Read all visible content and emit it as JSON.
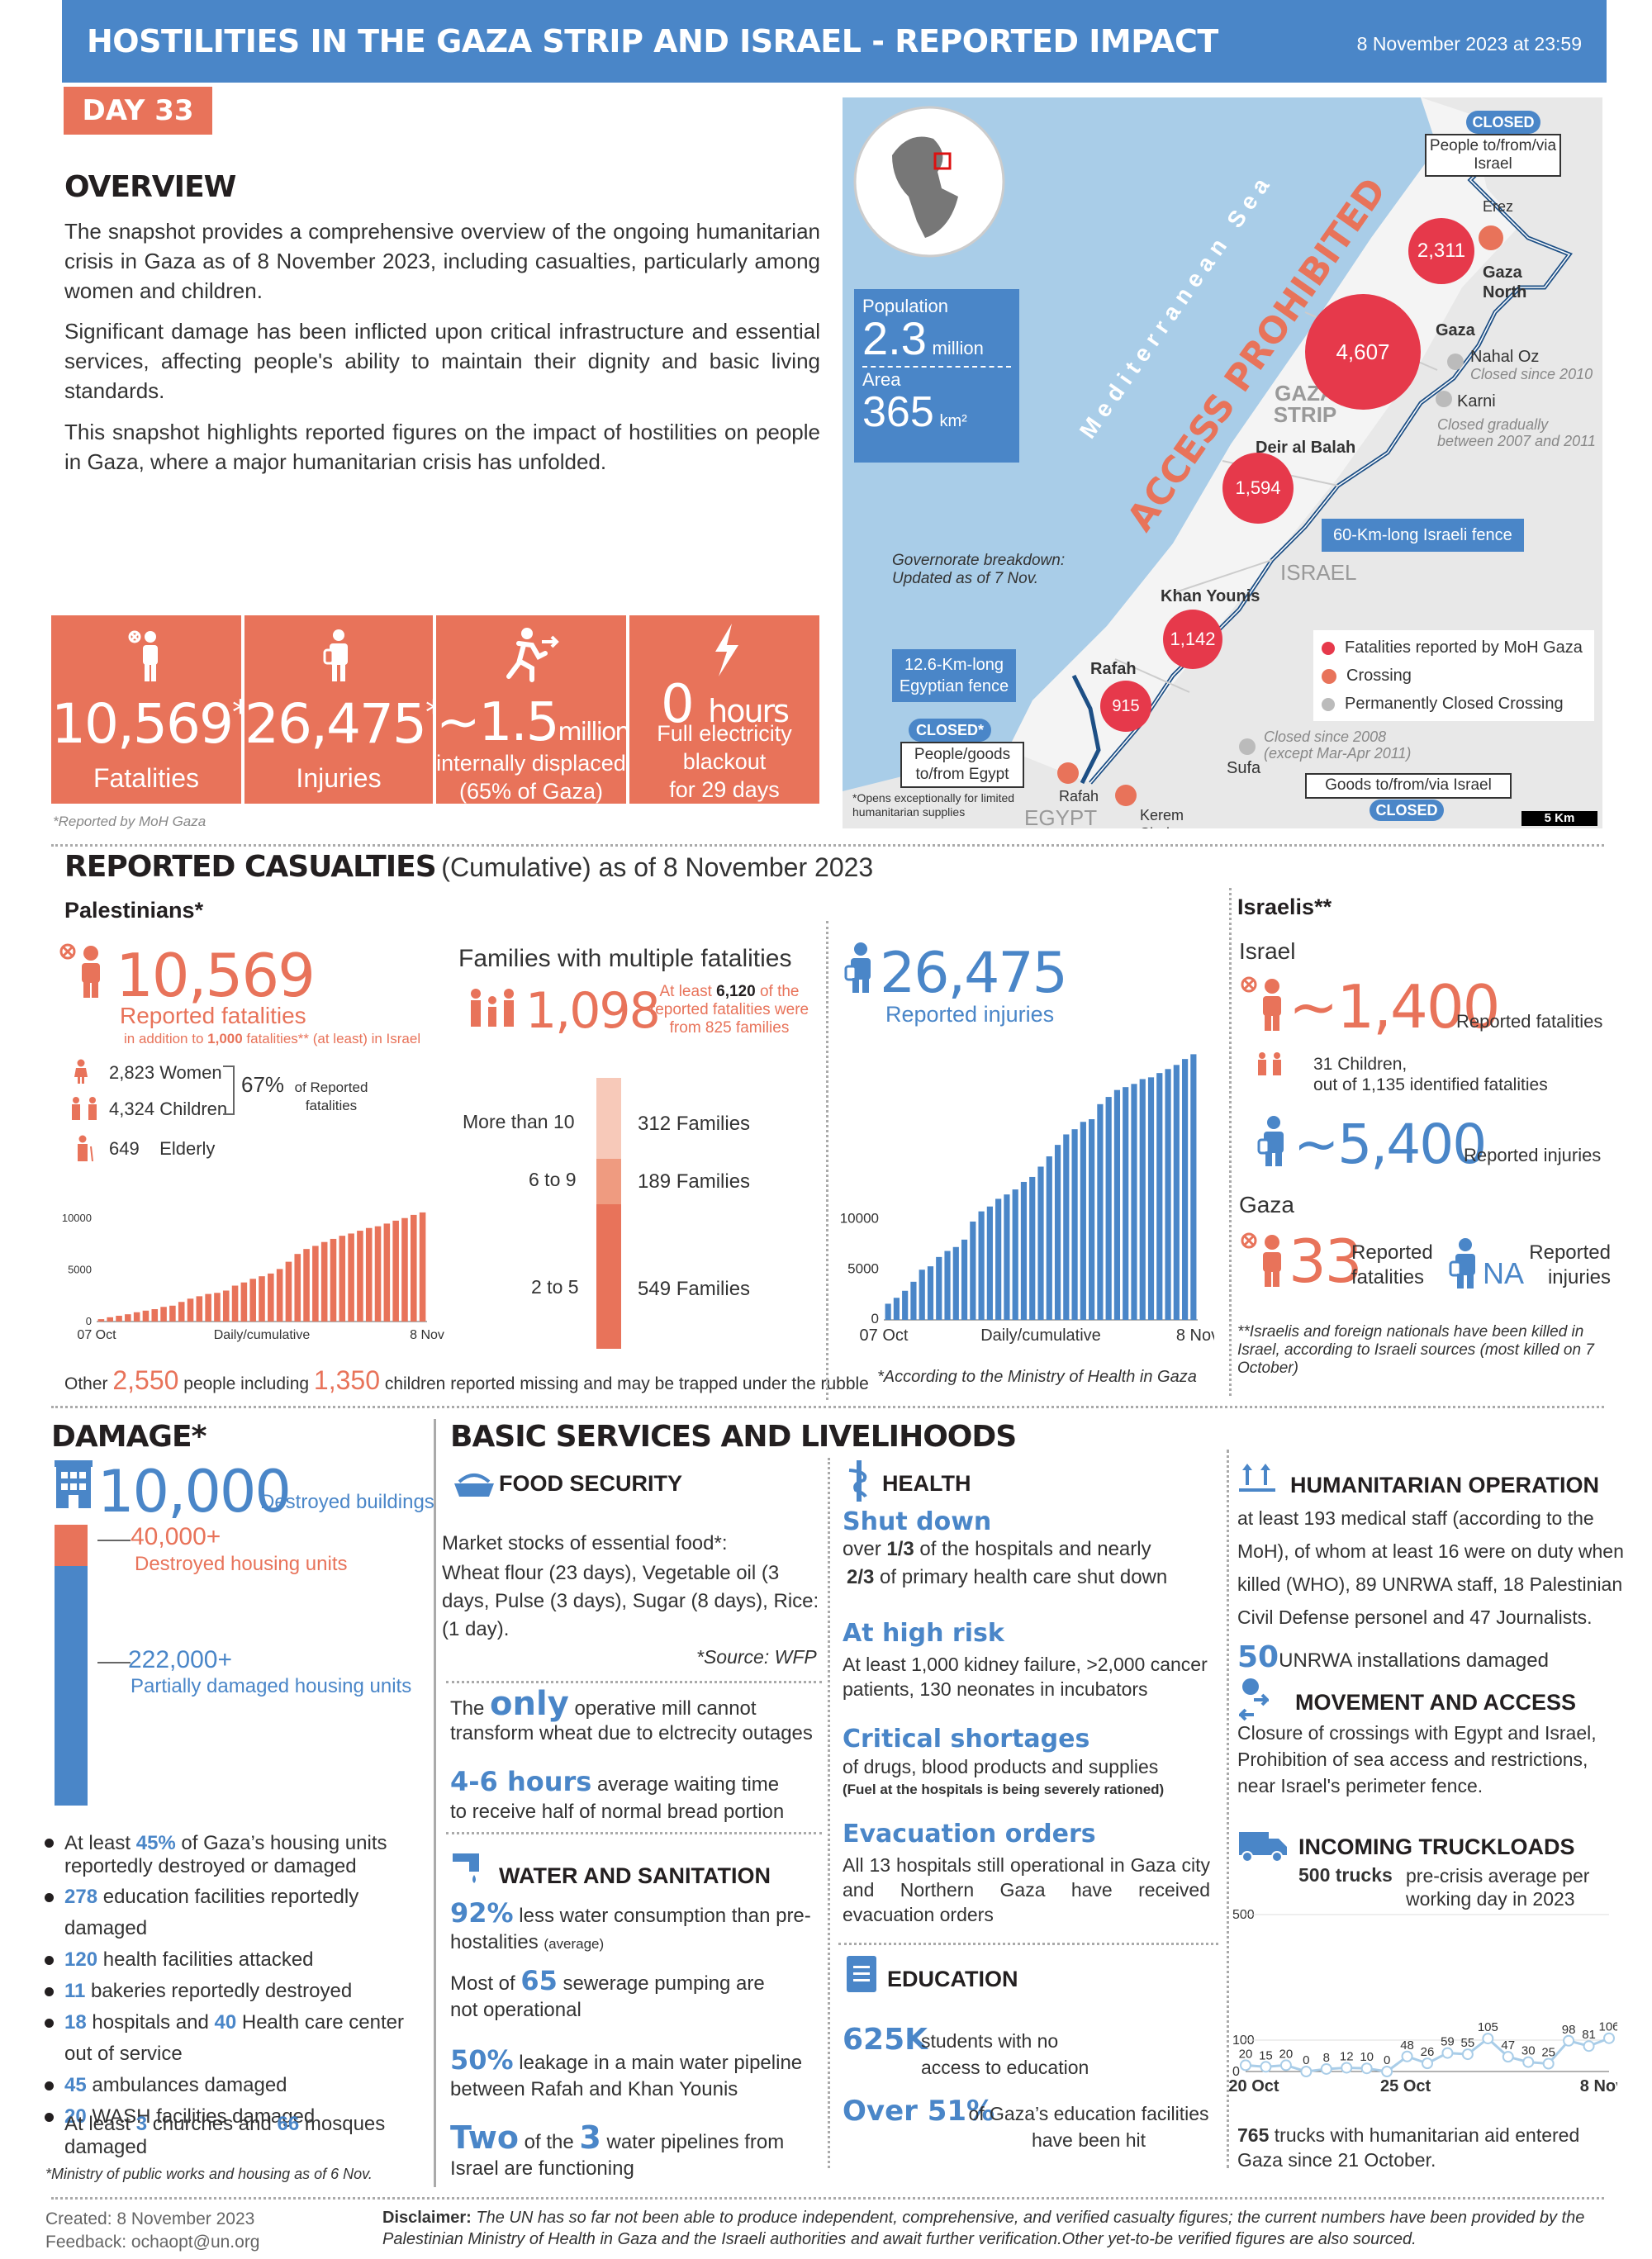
{
  "header": {
    "title": "HOSTILITIES IN THE GAZA STRIP AND ISRAEL - REPORTED IMPACT",
    "date": "8 November 2023 at 23:59",
    "day": "DAY 33"
  },
  "overview": {
    "title": "OVERVIEW",
    "p1": "The snapshot provides a comprehensive overview of the ongoing humanitarian crisis in Gaza as of 8 November 2023, including casualties, particularly among women and children.",
    "p2": "Significant damage has been inflicted upon critical infrastructure and essential services, affecting people's ability to maintain their dignity and basic living standards.",
    "p3": "This snapshot highlights reported figures on the impact of hostilities on people in Gaza, where a major humanitarian crisis has unfolded."
  },
  "kpis": [
    {
      "value": "10,569",
      "sup": "*",
      "label": "Fatalities"
    },
    {
      "value": "26,475",
      "sup": "*",
      "label": "Injuries"
    },
    {
      "value": "~1.5",
      "unit": "million",
      "label": "internally displaced",
      "label2": "(65% of Gaza)"
    },
    {
      "value": "0",
      "unit": "hours",
      "label": "Full electricity",
      "label2": "blackout",
      "label3": "for 29 days"
    }
  ],
  "kpi_note": "*Reported by MoH Gaza",
  "map": {
    "population_label": "Population",
    "population": "2.3",
    "population_unit": "million",
    "area_label": "Area",
    "area": "365",
    "area_unit": "km²",
    "sea": "Mediterranean Sea",
    "access": "ACCESS PROHIBITED",
    "gaza_strip": "GAZA STRIP",
    "israel": "ISRAEL",
    "egypt": "EGYPT",
    "erez_closed": "CLOSED",
    "erez_box": "People to/from/via Israel",
    "erez": "Erez",
    "gaza_north": "Gaza North",
    "gaza": "Gaza",
    "deir": "Deir al Balah",
    "khan": "Khan Younis",
    "rafah": "Rafah",
    "nahal": "Nahal Oz",
    "nahal_note": "Closed since 2010",
    "karni": "Karni",
    "karni_note": "Closed gradually between 2007 and 2011",
    "fence_il": "60-Km-long Israeli fence",
    "fence_eg": "12.6-Km-long Egyptian fence",
    "gov_note": "Governorate breakdown: Updated as of 7 Nov.",
    "rafah_closed": "CLOSED*",
    "rafah_box": "People/goods to/from Egypt",
    "rafah_crossing": "Rafah",
    "rafah_note": "*Opens exceptionally for limited humanitarian supplies",
    "sufa": "Sufa",
    "sufa_note": "Closed since 2008 (except Mar-Apr 2011)",
    "kerem": "Kerem Shalom",
    "kerem_box": "Goods to/from/via Israel",
    "kerem_closed": "CLOSED",
    "legend_fat": "Fatalities reported by MoH Gaza",
    "legend_cross": "Crossing",
    "legend_perm": "Permanently Closed Crossing",
    "scale": "5 Km",
    "bubbles": {
      "north": "2,311",
      "gaza": "4,607",
      "deir": "1,594",
      "khan": "1,142",
      "rafah": "915"
    }
  },
  "casualties": {
    "title": "REPORTED CASUALTIES",
    "title2": "(Cumulative) as of 8 November 2023",
    "pal": "Palestinians*",
    "fat": "10,569",
    "fat_label": "Reported fatalities",
    "fat_note_pre": "in addition to ",
    "fat_note_num": "1,000",
    "fat_note_post": " fatalities** (at least) in Israel",
    "women_n": "2,823",
    "women": "Women",
    "children_n": "4,324",
    "children": "Children",
    "elderly_n": "649",
    "elderly": "Elderly",
    "pct": "67%",
    "pct_label": "of Reported fatalities",
    "families_title": "Families with multiple fatalities",
    "families_n": "1,098",
    "families_note_pre": "At least ",
    "families_note_num": "6,120",
    "families_note_post": " of the reported fatalities were from 825 families",
    "fam_rows": [
      {
        "label": "More than 10",
        "value": "312 Families"
      },
      {
        "label": "6 to 9",
        "value": "189 Families"
      },
      {
        "label": "2 to 5",
        "value": "549  Families"
      }
    ],
    "missing_pre": "Other ",
    "missing_n": "2,550",
    "missing_mid": " people including ",
    "missing_c": "1,350",
    "missing_post": " children reported missing and  may be trapped under the rubble",
    "inj": "26,475",
    "inj_label": "Reported injuries",
    "inj_note": "*According to the Ministry of Health in Gaza",
    "isr_title": "Israelis**",
    "isr": "Israel",
    "isr_fat": "~1,400",
    "isr_fat_label": "Reported fatalities",
    "isr_children": "31 Children,",
    "isr_children2": "out of 1,135 identified fatalities",
    "isr_inj": "~5,400",
    "isr_inj_label": "Reported injuries",
    "gaza": "Gaza",
    "gaza_fat": "33",
    "gaza_fat_label1": "Reported",
    "gaza_fat_label2": "fatalities",
    "gaza_inj": "NA",
    "gaza_inj_label1": "Reported",
    "gaza_inj_label2": "injuries",
    "isr_note": "**Israelis and foreign nationals have been killed in Israel, according to Israeli sources (most killed on 7 October)"
  },
  "chart_data": [
    {
      "type": "bar",
      "title": "",
      "xlabel": "Daily/cumulative",
      "x_start": "07 Oct",
      "x_end": "8 Nov",
      "ylim": [
        0,
        10000
      ],
      "yticks": [
        "10000",
        "5000",
        "0"
      ],
      "values": [
        232,
        413,
        560,
        704,
        900,
        1055,
        1200,
        1417,
        1537,
        1900,
        2215,
        2450,
        2670,
        2778,
        3000,
        3478,
        3785,
        4137,
        4385,
        4651,
        5087,
        5791,
        6546,
        7028,
        7326,
        7703,
        8005,
        8306,
        8525,
        8796,
        9061,
        9227,
        9488,
        9770,
        10022,
        10328,
        10569
      ]
    },
    {
      "type": "bar",
      "title": "",
      "xlabel": "Daily/cumulative",
      "x_start": "07 Oct",
      "x_end": "8 Nov",
      "ylim": [
        0,
        27000
      ],
      "yticks": [
        "10000",
        "5000",
        "0"
      ],
      "values": [
        1610,
        2200,
        2900,
        3800,
        5000,
        5339,
        6268,
        6868,
        7262,
        8000,
        9800,
        10814,
        11300,
        12065,
        12500,
        13000,
        13750,
        14245,
        15273,
        16297,
        17439,
        18484,
        19000,
        19734,
        20000,
        21500,
        22219,
        22911,
        23200,
        23516,
        24000,
        24173,
        24600,
        25000,
        25408,
        26000,
        26475
      ]
    },
    {
      "type": "line",
      "title": "",
      "x_start": "20 Oct",
      "x_mid": "25 Oct",
      "x_end": "8 Nov",
      "ylim": [
        0,
        500
      ],
      "yticks": [
        "500",
        "100",
        "0"
      ],
      "values": [
        20,
        15,
        20,
        0,
        8,
        12,
        10,
        0,
        48,
        26,
        59,
        55,
        105,
        47,
        30,
        25,
        98,
        81,
        106
      ]
    }
  ],
  "damage": {
    "title": "DAMAGE*",
    "buildings": "10,000",
    "buildings_label": "Destroyed buildings",
    "destroyed": "40,000+",
    "destroyed_label": "Destroyed housing units",
    "partial": "222,000+",
    "partial_label": "Partially damaged housing units",
    "bullets": [
      {
        "n": "45%",
        "pre": "At least ",
        "post": " of Gaza’s housing units reportedly destroyed or damaged"
      },
      {
        "n": "278",
        "pre": "",
        "post": " education facilities reportedly damaged"
      },
      {
        "n": "120",
        "pre": "",
        "post": "  health facilities attacked"
      },
      {
        "n": "11",
        "pre": "",
        "post": " bakeries reportedly destroyed"
      },
      {
        "n": "18",
        "pre": "",
        "post": " hospitals and ",
        "n2": "40",
        "post2": " Health care center out of service"
      },
      {
        "n": "45",
        "pre": "",
        "post": " ambulances damaged"
      },
      {
        "n": "20",
        "pre": "",
        "post": " WASH facilities damaged"
      }
    ],
    "churches_pre": "At least ",
    "churches_n": "3",
    "churches_mid": " churches and ",
    "mosques_n": "66",
    "churches_post": " mosques damaged",
    "note": "*Ministry of public works and housing as of 6 Nov."
  },
  "services": {
    "title": "BASIC SERVICES AND LIVELIHOODS",
    "food": "FOOD SECURITY",
    "food_p": "Market stocks of essential food*:",
    "food_items": "Wheat flour (23 days), Vegetable oil (3 days, Pulse (3 days), Sugar (8 days), Rice: (1 day).",
    "food_src": "*Source: WFP",
    "mill_pre": "The ",
    "mill_only": "only",
    "mill_post": " operative mill cannot transform wheat due to elctrecity outages",
    "wait_n": "4-6 hours",
    "wait_post": " average waiting time",
    "wait2": "to receive half of normal bread portion",
    "water": "WATER AND SANITATION",
    "w1_n": "92%",
    "w1": " less water consumption than pre-hostalities",
    "w1_s": "(average)",
    "w2_pre": "Most of ",
    "w2_n": "65",
    "w2": " sewerage pumping are not operational",
    "w3_n": "50%",
    "w3": "  leakage  in a main water pipeline between Rafah and Khan Younis",
    "w4_n": "Two",
    "w4_mid": " of the ",
    "w4_n2": "3",
    "w4": "  water  pipelines from Israel are functioning",
    "health": "HEALTH",
    "h1": "Shut down",
    "h1_a": "over ",
    "h1_a_n": "1/3",
    "h1_a2": " of the hospitals and nearly",
    "h1_b_n": "2/3",
    "h1_b": " of primary health care shut down",
    "h2": "At high risk",
    "h2_t": "At least 1,000  kidney failure, >2,000 cancer patients, 130 neonates in incubators",
    "h3": "Critical shortages",
    "h3_t": "of drugs, blood products and supplies",
    "h3_s": "(Fuel at the hospitals is being severely rationed)",
    "h4": "Evacuation orders",
    "h4_t": "All 13 hospitals still operational in Gaza city and Northern Gaza have received evacuation orders",
    "edu": "EDUCATION",
    "e1_n": "625K",
    "e1": "students with no access to education",
    "e2_n": "Over 51%",
    "e2": "of Gaza’s education facilities have been hit",
    "hum": "HUMANITARIAN OPERATION",
    "hum_t": "at least 193 medical staff (according to the MoH), of whom at least 16 were on duty when killed (WHO), 89 UNRWA staff, 18 Palestinian Civil Defense personel and 47 Journalists.",
    "hum_t2": "UNRWA installations damaged",
    "hum_t2_n": "50",
    "mov": "MOVEMENT AND ACCESS",
    "mov_t": "Closure of crossings with Egypt and Israel, Prohibition of sea access and restrictions, near Israel's perimeter fence.",
    "truck": "INCOMING TRUCKLOADS",
    "truck_n": "500 trucks",
    "truck_t": "pre-crisis average per working day in 2023",
    "truck_total_n": "765",
    "truck_total": " trucks with humanitarian aid entered Gaza since 21 October."
  },
  "footer": {
    "created": "Created: 8 November 2023",
    "feedback": "Feedback: ochaopt@un.org",
    "disclaimer_b": "Disclaimer:",
    "disclaimer": " The UN has so far not been able to produce independent, comprehensive, and verified casualty figures; the current numbers have been provided by the Palestinian Ministry of Health in Gaza and the Israeli authorities and await further verification.Other yet-to-be verified figures are also sourced."
  },
  "colors": {
    "blue": "#4a86c8",
    "orange": "#e8735a",
    "red": "#e6394b",
    "sea": "#a9cde8"
  }
}
